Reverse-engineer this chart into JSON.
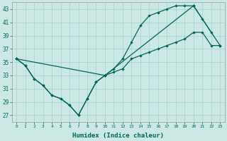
{
  "xlabel": "Humidex (Indice chaleur)",
  "background_color": "#cce8e4",
  "grid_color": "#aad4d0",
  "line_color": "#006655",
  "xlim": [
    -0.5,
    23.5
  ],
  "ylim": [
    26,
    44
  ],
  "xticks": [
    0,
    1,
    2,
    3,
    4,
    5,
    6,
    7,
    8,
    9,
    10,
    11,
    12,
    13,
    14,
    15,
    16,
    17,
    18,
    19,
    20,
    21,
    22,
    23
  ],
  "yticks": [
    27,
    29,
    31,
    33,
    35,
    37,
    39,
    41,
    43
  ],
  "series": [
    {
      "x": [
        0,
        1,
        2,
        3,
        4,
        5,
        6,
        7,
        8,
        9,
        10,
        11,
        12,
        13,
        14,
        15,
        16,
        17,
        18,
        19,
        20,
        21,
        22,
        23
      ],
      "y": [
        35.5,
        34.5,
        32.5,
        31.5,
        30.0,
        29.5,
        28.5,
        27.0,
        29.5,
        32.0,
        33.0,
        33.5,
        34.0,
        35.5,
        36.0,
        36.5,
        37.0,
        37.5,
        38.0,
        38.5,
        39.5,
        39.5,
        37.5,
        37.5
      ]
    },
    {
      "x": [
        0,
        1,
        2,
        3,
        4,
        5,
        6,
        7,
        8,
        9,
        10,
        11,
        12,
        13,
        14,
        15,
        16,
        17,
        18,
        19,
        20,
        21,
        22
      ],
      "y": [
        35.5,
        34.5,
        32.5,
        31.5,
        30.0,
        29.5,
        28.5,
        27.0,
        29.5,
        32.0,
        33.0,
        34.0,
        35.5,
        38.0,
        40.5,
        42.0,
        42.5,
        43.0,
        43.5,
        43.5,
        43.5,
        41.5,
        39.5
      ]
    },
    {
      "x": [
        0,
        10,
        20,
        23
      ],
      "y": [
        35.5,
        33.0,
        43.5,
        37.5
      ]
    }
  ]
}
